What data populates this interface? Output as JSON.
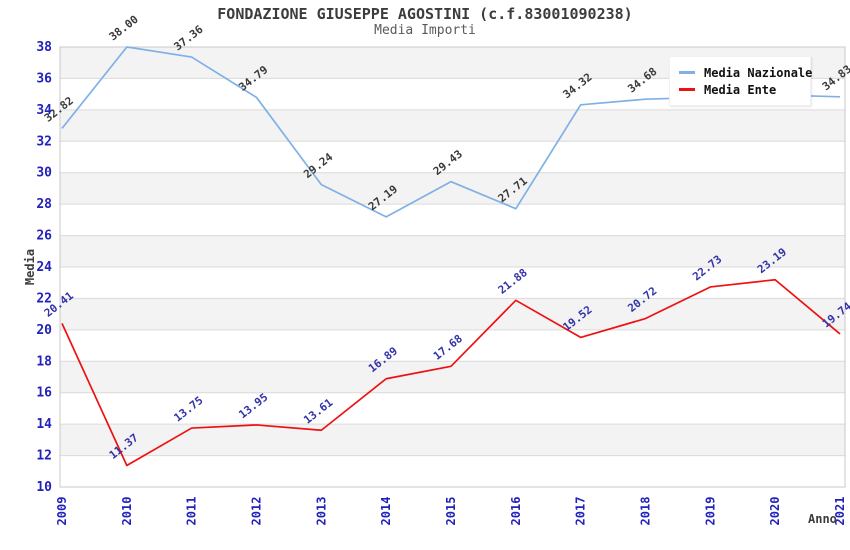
{
  "header": {
    "title": "FONDAZIONE GIUSEPPE AGOSTINI (c.f.83001090238)",
    "subtitle": "Media Importi"
  },
  "chart_data": {
    "type": "line",
    "title": "FONDAZIONE GIUSEPPE AGOSTINI (c.f.83001090238)",
    "subtitle": "Media Importi",
    "xlabel": "Anno",
    "ylabel": "Media",
    "ylim": [
      10,
      38
    ],
    "yticks": [
      10,
      12,
      14,
      16,
      18,
      20,
      22,
      24,
      26,
      28,
      30,
      32,
      34,
      36,
      38
    ],
    "grid": "horizontal-bands",
    "legend_position": "top-right",
    "categories": [
      "2009",
      "2010",
      "2011",
      "2012",
      "2013",
      "2014",
      "2015",
      "2016",
      "2017",
      "2018",
      "2019",
      "2020",
      "2021"
    ],
    "series": [
      {
        "name": "Media Nazionale",
        "color": "#7fb0e6",
        "label_color": "#3a3a3a",
        "values": [
          32.82,
          38.0,
          37.36,
          34.79,
          29.24,
          27.19,
          29.43,
          27.71,
          34.32,
          34.68,
          34.8,
          34.95,
          34.83
        ],
        "point_labels": [
          "32.82",
          "38.00",
          "37.36",
          "34.79",
          "29.24",
          "27.19",
          "29.43",
          "27.71",
          "34.32",
          "34.68",
          "",
          "",
          "34.83"
        ]
      },
      {
        "name": "Media Ente",
        "color": "#ee1111",
        "label_color": "#3333aa",
        "values": [
          20.41,
          11.37,
          13.75,
          13.95,
          13.61,
          16.89,
          17.68,
          21.88,
          19.52,
          20.72,
          22.73,
          23.19,
          19.74
        ],
        "point_labels": [
          "20.41",
          "11.37",
          "13.75",
          "13.95",
          "13.61",
          "16.89",
          "17.68",
          "21.88",
          "19.52",
          "20.72",
          "22.73",
          "23.19",
          "19.74"
        ]
      }
    ]
  },
  "colors": {
    "band_fill": "#f3f3f3",
    "gridline": "#dadada",
    "plot_border": "#c9c9c9",
    "tick_text": "#2222bb",
    "axis_title_text": "#3c3c3c",
    "title_text": "#3c3c3c",
    "subtitle_text": "#5a5a5a",
    "legend_text": "#111111"
  }
}
